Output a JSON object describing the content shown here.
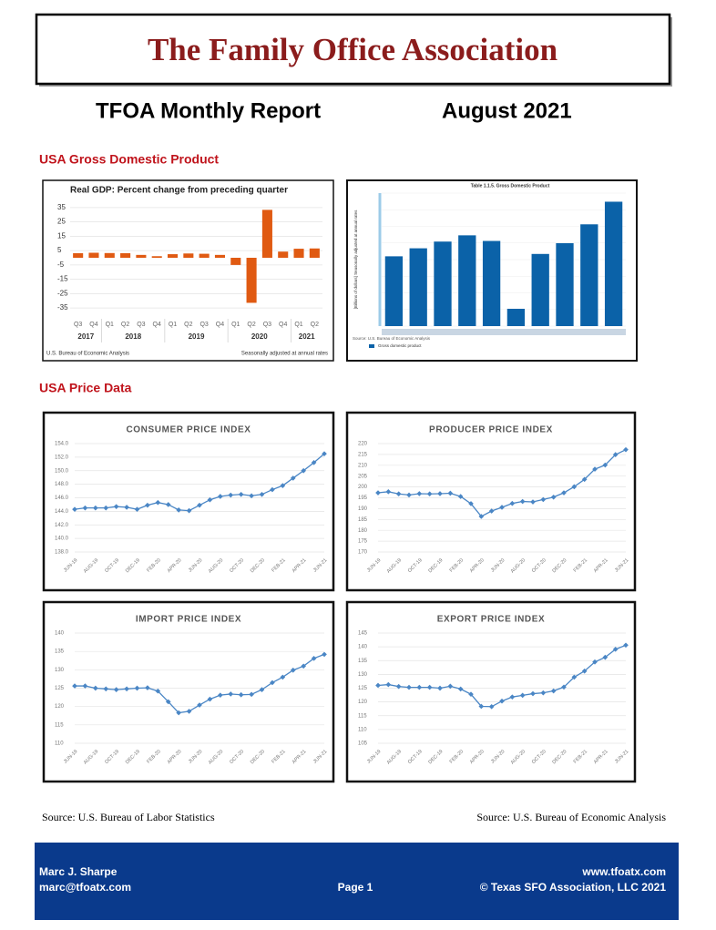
{
  "header": {
    "title": "The Family Office Association",
    "report_title": "TFOA Monthly Report",
    "date": "August 2021"
  },
  "sections": [
    "USA Gross Domestic Product",
    "USA Price Data"
  ],
  "chart_data": [
    {
      "type": "bar",
      "title": "Real GDP: Percent change from preceding quarter",
      "categories": [
        "Q3",
        "Q4",
        "Q1",
        "Q2",
        "Q3",
        "Q4",
        "Q1",
        "Q2",
        "Q3",
        "Q4",
        "Q1",
        "Q2",
        "Q3",
        "Q4",
        "Q1",
        "Q2"
      ],
      "year_labels": [
        "2017",
        "2018",
        "2019",
        "2020",
        "2021"
      ],
      "values": [
        3.2,
        3.5,
        3.3,
        3.2,
        2.0,
        1.1,
        2.5,
        3.0,
        2.8,
        2.0,
        -5.0,
        -31.4,
        33.4,
        4.3,
        6.3,
        6.5
      ],
      "color": "#e05a12",
      "ylim": [
        -40,
        40
      ],
      "yticks": [
        35,
        25,
        15,
        5,
        -5,
        -15,
        -25,
        -35
      ],
      "grid": true,
      "source": "U.S. Bureau of Economic Analysis",
      "note": "Seasonally adjusted at annual rates"
    },
    {
      "type": "bar",
      "title": "Table 1.1.5. Gross Domestic Product",
      "y_label": "[Billions of dollars] Seasonally adjusted at annual rates",
      "values": [
        21099,
        21340,
        21542,
        21730,
        21561,
        19520,
        21170,
        21494,
        22061,
        22741
      ],
      "color": "#0b62a8",
      "ylim": [
        19000,
        23000
      ],
      "legend": "Gross domestic product",
      "source": "Source: U.S. Bureau of Economic Analysis"
    },
    {
      "type": "line",
      "title": "CONSUMER PRICE INDEX",
      "categories": [
        "JUN-19",
        null,
        "AUG-19",
        null,
        "OCT-19",
        null,
        "DEC-19",
        null,
        "FEB-20",
        null,
        "APR-20",
        null,
        "JUN-20",
        null,
        "AUG-20",
        null,
        "OCT-20",
        null,
        "DEC-20",
        null,
        "FEB-21",
        null,
        "APR-21",
        null,
        "JUN-21"
      ],
      "values": [
        144.3,
        144.5,
        144.5,
        144.5,
        144.7,
        144.6,
        144.3,
        144.9,
        145.3,
        145.0,
        144.2,
        144.1,
        144.9,
        145.7,
        146.2,
        146.4,
        146.5,
        146.3,
        146.5,
        147.2,
        147.8,
        148.9,
        150.0,
        151.2,
        152.5
      ],
      "color": "#4a86c5",
      "ylim": [
        138,
        154
      ],
      "grid": true,
      "yticks": [
        {
          "value": 138,
          "label": "138.0"
        },
        {
          "value": 140,
          "label": "140.0"
        },
        {
          "value": 142,
          "label": "142.0"
        },
        {
          "value": 144,
          "label": "144.0"
        },
        {
          "value": 146,
          "label": "146.0"
        },
        {
          "value": 148,
          "label": "148.0"
        },
        {
          "value": 150,
          "label": "150.0"
        },
        {
          "value": 152,
          "label": "152.0"
        },
        {
          "value": 154,
          "label": "154.0"
        }
      ]
    },
    {
      "type": "line",
      "title": "PRODUCER PRICE INDEX",
      "categories": [
        "JUN-19",
        null,
        "AUG-19",
        null,
        "OCT-19",
        null,
        "DEC-19",
        null,
        "FEB-20",
        null,
        "APR-20",
        null,
        "JUN-20",
        null,
        "AUG-20",
        null,
        "OCT-20",
        null,
        "DEC-20",
        null,
        "FEB-21",
        null,
        "APR-21",
        null,
        "JUN-21"
      ],
      "values": [
        197.3,
        197.8,
        196.8,
        196.3,
        196.9,
        196.8,
        196.9,
        197.1,
        195.6,
        192.3,
        186.4,
        188.9,
        190.6,
        192.4,
        193.3,
        193.1,
        194.2,
        195.3,
        197.3,
        200.1,
        203.5,
        208.2,
        210.1,
        214.9,
        217.2
      ],
      "color": "#4a86c5",
      "ylim": [
        170,
        220
      ],
      "grid": true,
      "yticks": [
        170,
        175,
        180,
        185,
        190,
        195,
        200,
        205,
        210,
        215,
        220
      ]
    },
    {
      "type": "line",
      "title": "IMPORT PRICE INDEX",
      "categories": [
        "JUN-19",
        null,
        "AUG-19",
        null,
        "OCT-19",
        null,
        "DEC-19",
        null,
        "FEB-20",
        null,
        "APR-20",
        null,
        "JUN-20",
        null,
        "AUG-20",
        null,
        "OCT-20",
        null,
        "DEC-20",
        null,
        "FEB-21",
        null,
        "APR-21",
        null,
        "JUN-21"
      ],
      "values": [
        125.6,
        125.6,
        125.0,
        124.8,
        124.6,
        124.8,
        125.0,
        125.1,
        124.2,
        121.3,
        118.3,
        118.7,
        120.4,
        122.0,
        123.1,
        123.4,
        123.2,
        123.3,
        124.6,
        126.5,
        128.0,
        129.9,
        131.0,
        133.1,
        134.2
      ],
      "color": "#4a86c5",
      "ylim": [
        110,
        140
      ],
      "grid": true,
      "yticks": [
        110,
        115,
        120,
        125,
        130,
        135,
        140
      ]
    },
    {
      "type": "line",
      "title": "EXPORT PRICE INDEX",
      "categories": [
        "JUN-19",
        null,
        "AUG-19",
        null,
        "OCT-19",
        null,
        "DEC-19",
        null,
        "FEB-20",
        null,
        "APR-20",
        null,
        "JUN-20",
        null,
        "AUG-20",
        null,
        "OCT-20",
        null,
        "DEC-20",
        null,
        "FEB-21",
        null,
        "APR-21",
        null,
        "JUN-21"
      ],
      "values": [
        126.0,
        126.3,
        125.6,
        125.3,
        125.3,
        125.3,
        125.0,
        125.7,
        124.7,
        122.8,
        118.4,
        118.3,
        120.3,
        121.8,
        122.4,
        123.0,
        123.3,
        124.0,
        125.4,
        129.0,
        131.2,
        134.5,
        136.2,
        139.1,
        140.6
      ],
      "color": "#4a86c5",
      "ylim": [
        105,
        145
      ],
      "grid": true,
      "yticks": [
        105,
        110,
        115,
        120,
        125,
        130,
        135,
        140,
        145
      ]
    }
  ],
  "sources": [
    "Source: U.S. Bureau of Labor Statistics",
    "Source: U.S. Bureau of Economic Analysis"
  ],
  "footer": {
    "name": "Marc J. Sharpe",
    "email": "marc@tfoatx.com",
    "page": "Page 1",
    "website": "www.tfoatx.com",
    "copyright": "© Texas SFO Association, LLC 2021"
  }
}
